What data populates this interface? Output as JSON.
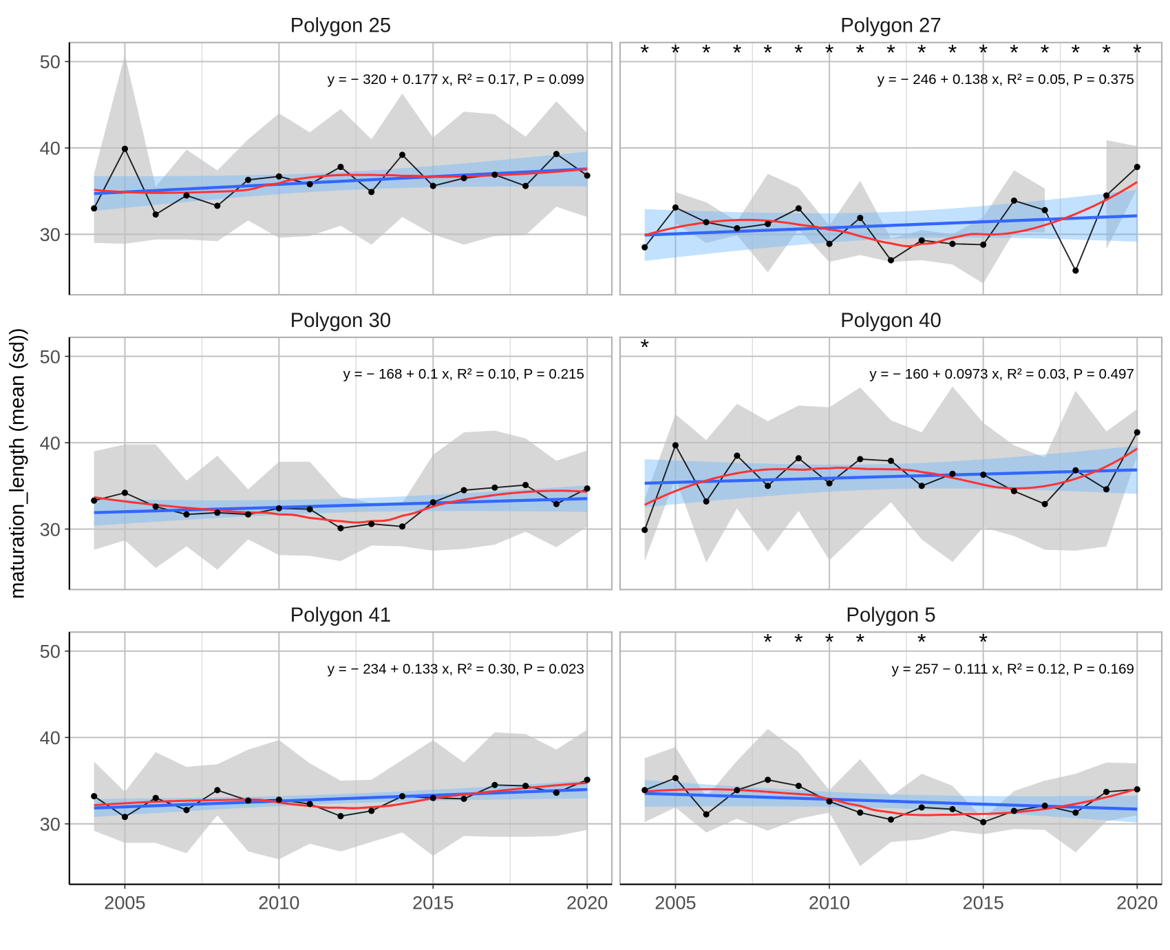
{
  "chart_data": {
    "type": "line",
    "ylabel": "maturation_length (mean (sd))",
    "xlabel": "",
    "x": [
      2004,
      2005,
      2006,
      2007,
      2008,
      2009,
      2010,
      2011,
      2012,
      2013,
      2014,
      2015,
      2016,
      2017,
      2018,
      2019,
      2020
    ],
    "x_ticks": [
      2005,
      2010,
      2015,
      2020
    ],
    "y_ticks": [
      30,
      40,
      50
    ],
    "xlim": [
      2003.2,
      2020.8
    ],
    "ylim": [
      23.0,
      52.2
    ],
    "grid": true,
    "colors": {
      "mean_line": "#000000",
      "ribbon_sd": "#bebebe",
      "lm_line": "#3366ff",
      "lm_ci": "#66b3ff",
      "loess_line": "#ff3333"
    },
    "panels": [
      {
        "title": "Polygon 25",
        "equation": "y = − 320 + 0.177 x,  R² = 0.17,  P = 0.099",
        "asterisk_years": [],
        "mean": [
          33.0,
          39.9,
          32.3,
          34.5,
          33.3,
          36.3,
          36.7,
          35.8,
          37.8,
          34.9,
          39.2,
          35.6,
          36.5,
          36.9,
          35.6,
          39.3,
          36.8
        ],
        "upper": [
          37.0,
          50.8,
          35.5,
          39.8,
          37.4,
          41.0,
          44.0,
          41.8,
          44.5,
          41.0,
          46.3,
          41.2,
          44.2,
          43.9,
          41.3,
          45.4,
          41.7
        ],
        "lower": [
          29.0,
          28.9,
          29.4,
          29.4,
          29.2,
          31.6,
          29.6,
          29.8,
          31.0,
          28.8,
          32.0,
          30.0,
          28.8,
          29.8,
          29.9,
          33.2,
          32.0
        ]
      },
      {
        "title": "Polygon 27",
        "equation": "y = − 246 + 0.138 x,  R² = 0.05,  P = 0.375",
        "asterisk_years": [
          2004,
          2005,
          2006,
          2007,
          2008,
          2009,
          2010,
          2011,
          2012,
          2013,
          2014,
          2015,
          2016,
          2017,
          2018,
          2019,
          2020
        ],
        "mean": [
          28.5,
          33.1,
          31.4,
          30.7,
          31.2,
          33.0,
          28.9,
          31.9,
          27.0,
          29.3,
          28.9,
          28.8,
          33.9,
          32.8,
          25.8,
          34.5,
          37.8
        ],
        "upper": [
          null,
          34.9,
          33.7,
          31.5,
          37.0,
          35.4,
          31.0,
          36.2,
          29.5,
          30.5,
          30.0,
          32.0,
          37.4,
          35.3,
          null,
          40.9,
          40.2
        ],
        "lower": [
          null,
          31.3,
          29.0,
          29.9,
          25.6,
          30.6,
          26.8,
          27.6,
          26.8,
          27.0,
          26.5,
          24.3,
          30.3,
          30.2,
          null,
          28.3,
          35.3
        ]
      },
      {
        "title": "Polygon 30",
        "equation": "y = − 168 + 0.1 x,  R² = 0.10,  P = 0.215",
        "asterisk_years": [],
        "mean": [
          33.3,
          34.2,
          32.6,
          31.7,
          31.9,
          31.7,
          32.4,
          32.3,
          30.1,
          30.6,
          30.3,
          33.1,
          34.5,
          34.8,
          35.1,
          32.9,
          34.7
        ],
        "upper": [
          39.0,
          39.8,
          39.8,
          35.6,
          38.5,
          34.6,
          37.8,
          37.8,
          33.8,
          33.0,
          33.0,
          38.6,
          41.2,
          41.4,
          40.5,
          37.9,
          39.1
        ],
        "lower": [
          27.6,
          28.7,
          25.5,
          28.0,
          25.3,
          28.8,
          27.0,
          26.9,
          26.3,
          28.1,
          28.0,
          27.5,
          27.7,
          28.2,
          29.7,
          27.9,
          30.3
        ]
      },
      {
        "title": "Polygon 40",
        "equation": "y = − 160 + 0.0973 x,  R² = 0.03,  P = 0.497",
        "asterisk_years": [
          2004
        ],
        "mean": [
          29.9,
          39.7,
          33.2,
          38.5,
          35.0,
          38.2,
          35.3,
          38.1,
          37.9,
          35.0,
          36.4,
          36.3,
          34.4,
          32.9,
          36.8,
          34.6,
          41.2
        ],
        "upper": [
          33.5,
          43.3,
          40.3,
          44.5,
          42.5,
          44.3,
          44.1,
          46.4,
          42.6,
          41.2,
          46.5,
          42.3,
          39.7,
          38.3,
          46.0,
          41.3,
          43.9
        ],
        "lower": [
          26.3,
          35.9,
          26.1,
          32.4,
          27.4,
          32.1,
          26.4,
          29.8,
          33.1,
          28.8,
          26.2,
          30.2,
          29.2,
          27.6,
          27.5,
          28.0,
          38.5
        ]
      },
      {
        "title": "Polygon 41",
        "equation": "y = − 234 + 0.133 x,  R² = 0.30,  P = 0.023",
        "asterisk_years": [],
        "mean": [
          33.2,
          30.8,
          33.0,
          31.6,
          33.9,
          32.7,
          32.8,
          32.3,
          30.9,
          31.5,
          33.2,
          33.0,
          32.9,
          34.5,
          34.4,
          33.6,
          35.1
        ],
        "upper": [
          37.2,
          33.7,
          38.3,
          36.6,
          36.9,
          38.6,
          39.7,
          37.0,
          35.0,
          35.1,
          37.4,
          39.7,
          37.1,
          40.6,
          40.4,
          38.6,
          40.9
        ],
        "lower": [
          29.2,
          27.8,
          27.8,
          26.6,
          31.0,
          26.8,
          25.9,
          27.7,
          26.8,
          27.9,
          29.0,
          26.3,
          28.6,
          28.5,
          28.5,
          28.6,
          29.3
        ]
      },
      {
        "title": "Polygon 5",
        "equation": "y = 257 − 0.111 x,  R² = 0.12,  P = 0.169",
        "asterisk_years": [
          2008,
          2009,
          2010,
          2011,
          2013,
          2015
        ],
        "mean": [
          33.9,
          35.3,
          31.1,
          33.9,
          35.1,
          34.4,
          32.6,
          31.3,
          30.5,
          31.9,
          31.7,
          30.2,
          31.5,
          32.1,
          31.3,
          33.7,
          34.0
        ],
        "upper": [
          37.6,
          38.9,
          33.1,
          37.3,
          41.0,
          38.3,
          33.9,
          37.5,
          33.2,
          35.8,
          34.4,
          30.6,
          33.8,
          35.0,
          35.8,
          37.1,
          37.0
        ],
        "lower": [
          30.2,
          31.9,
          29.0,
          30.6,
          29.2,
          30.6,
          31.3,
          25.1,
          27.9,
          28.2,
          29.2,
          28.8,
          29.4,
          29.3,
          26.7,
          30.3,
          31.0
        ]
      }
    ]
  }
}
